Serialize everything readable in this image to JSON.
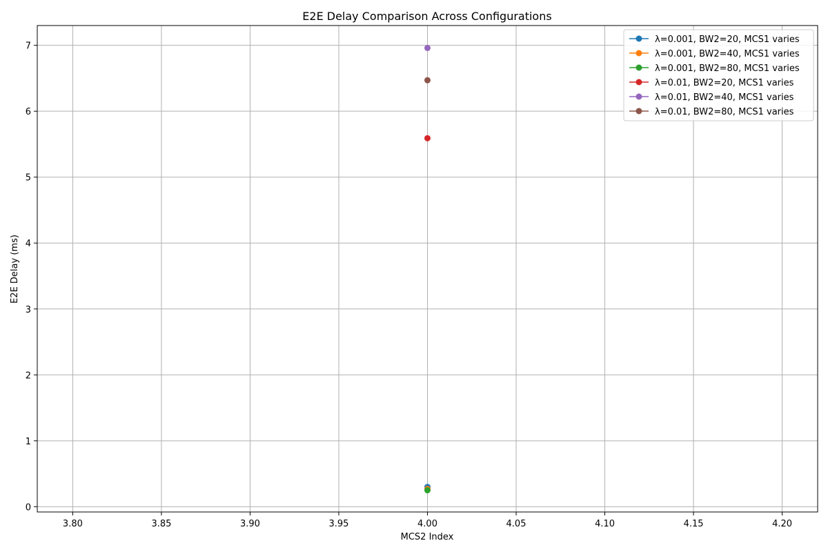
{
  "chart_data": {
    "type": "line",
    "title": "E2E Delay Comparison Across Configurations",
    "xlabel": "MCS2 Index",
    "ylabel": "E2E Delay (ms)",
    "xlim": [
      3.78,
      4.22
    ],
    "ylim": [
      -0.08,
      7.3
    ],
    "x_ticks": [
      3.8,
      3.85,
      3.9,
      3.95,
      4.0,
      4.05,
      4.1,
      4.15,
      4.2
    ],
    "x_tick_labels": [
      "3.80",
      "3.85",
      "3.90",
      "3.95",
      "4.00",
      "4.05",
      "4.10",
      "4.15",
      "4.20"
    ],
    "y_ticks": [
      0,
      1,
      2,
      3,
      4,
      5,
      6,
      7
    ],
    "y_tick_labels": [
      "0",
      "1",
      "2",
      "3",
      "4",
      "5",
      "6",
      "7"
    ],
    "grid": true,
    "legend_position": "top-right",
    "series": [
      {
        "name": "λ=0.001, BW2=20, MCS1 varies",
        "color": "#1f77b4",
        "x": [
          4.0
        ],
        "y": [
          0.3
        ]
      },
      {
        "name": "λ=0.001, BW2=40, MCS1 varies",
        "color": "#ff7f0e",
        "x": [
          4.0
        ],
        "y": [
          0.27
        ]
      },
      {
        "name": "λ=0.001, BW2=80, MCS1 varies",
        "color": "#2ca02c",
        "x": [
          4.0
        ],
        "y": [
          0.25
        ]
      },
      {
        "name": "λ=0.01, BW2=20, MCS1 varies",
        "color": "#d62728",
        "x": [
          4.0
        ],
        "y": [
          5.59
        ]
      },
      {
        "name": "λ=0.01, BW2=40, MCS1 varies",
        "color": "#9467bd",
        "x": [
          4.0
        ],
        "y": [
          6.96
        ]
      },
      {
        "name": "λ=0.01, BW2=80, MCS1 varies",
        "color": "#8c564b",
        "x": [
          4.0
        ],
        "y": [
          6.47
        ]
      }
    ]
  }
}
